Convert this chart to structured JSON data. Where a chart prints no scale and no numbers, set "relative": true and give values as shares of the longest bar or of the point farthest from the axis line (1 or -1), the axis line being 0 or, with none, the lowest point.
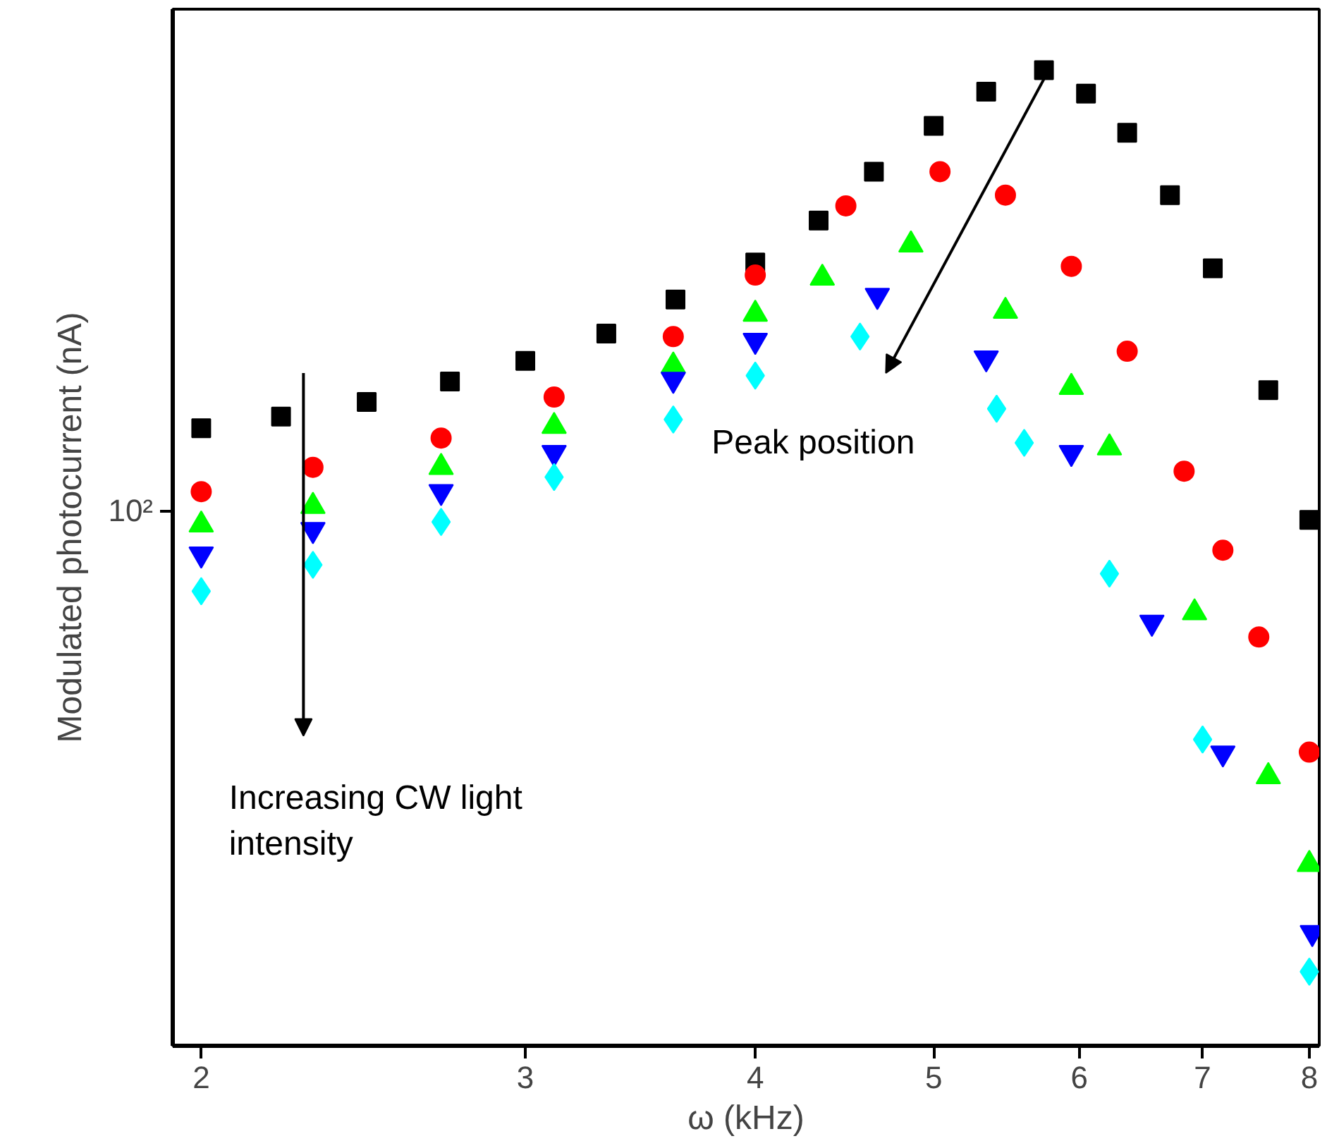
{
  "chart_data": {
    "type": "scatter",
    "xlabel": "ω (kHz)",
    "ylabel": "Modulated photocurrent (nA)",
    "log": "x",
    "grid": false,
    "relative": true,
    "xlim": [
      1.93,
      8.1
    ],
    "xticks": [
      2,
      3,
      4,
      5,
      6,
      7,
      8
    ],
    "annotations": [
      "Increasing CW light\nintensity",
      "Peak position",
      "10²"
    ],
    "series": [
      {
        "color": "#000000",
        "marker": "square",
        "x": [
          2.0,
          2.21,
          2.46,
          2.73,
          3.0,
          3.32,
          3.62,
          4.0,
          4.33,
          4.64,
          5.0,
          5.34,
          5.74,
          6.05,
          6.37,
          6.72,
          7.09,
          7.6,
          8.0
        ],
        "values": [
          0.633,
          0.645,
          0.66,
          0.681,
          0.702,
          0.73,
          0.765,
          0.803,
          0.846,
          0.896,
          0.943,
          0.978,
          1.0,
          0.976,
          0.936,
          0.872,
          0.797,
          0.672,
          0.539
        ]
      },
      {
        "color": "#ff0000",
        "marker": "circle",
        "x": [
          2.0,
          2.3,
          2.7,
          3.11,
          3.61,
          4.0,
          4.48,
          5.04,
          5.47,
          5.94,
          6.37,
          6.84,
          7.18,
          7.51,
          8.0
        ],
        "values": [
          0.568,
          0.593,
          0.623,
          0.665,
          0.727,
          0.79,
          0.861,
          0.896,
          0.872,
          0.799,
          0.712,
          0.589,
          0.508,
          0.419,
          0.301
        ]
      },
      {
        "color": "#00ff00",
        "marker": "triangle",
        "x": [
          2.0,
          2.3,
          2.7,
          3.11,
          3.61,
          4.0,
          4.35,
          4.86,
          5.47,
          5.94,
          6.23,
          6.93,
          7.6,
          8.0
        ],
        "values": [
          0.534,
          0.553,
          0.593,
          0.635,
          0.697,
          0.75,
          0.787,
          0.821,
          0.753,
          0.675,
          0.613,
          0.444,
          0.276,
          0.186
        ]
      },
      {
        "color": "#0000ff",
        "x": [
          2.0,
          2.3,
          2.7,
          3.11,
          3.61,
          4.0,
          4.66,
          5.34,
          5.94,
          6.57,
          7.18,
          8.03
        ],
        "values": [
          0.504,
          0.529,
          0.568,
          0.608,
          0.683,
          0.723,
          0.769,
          0.705,
          0.608,
          0.434,
          0.3,
          0.116
        ]
      },
      {
        "color": "#00ffff",
        "marker": "diamond",
        "x": [
          2.0,
          2.3,
          2.7,
          3.11,
          3.61,
          4.0,
          4.56,
          5.41,
          5.6,
          6.23,
          7.0,
          8.0
        ],
        "values": [
          0.466,
          0.493,
          0.537,
          0.583,
          0.642,
          0.687,
          0.727,
          0.653,
          0.618,
          0.484,
          0.314,
          0.076
        ]
      }
    ]
  }
}
